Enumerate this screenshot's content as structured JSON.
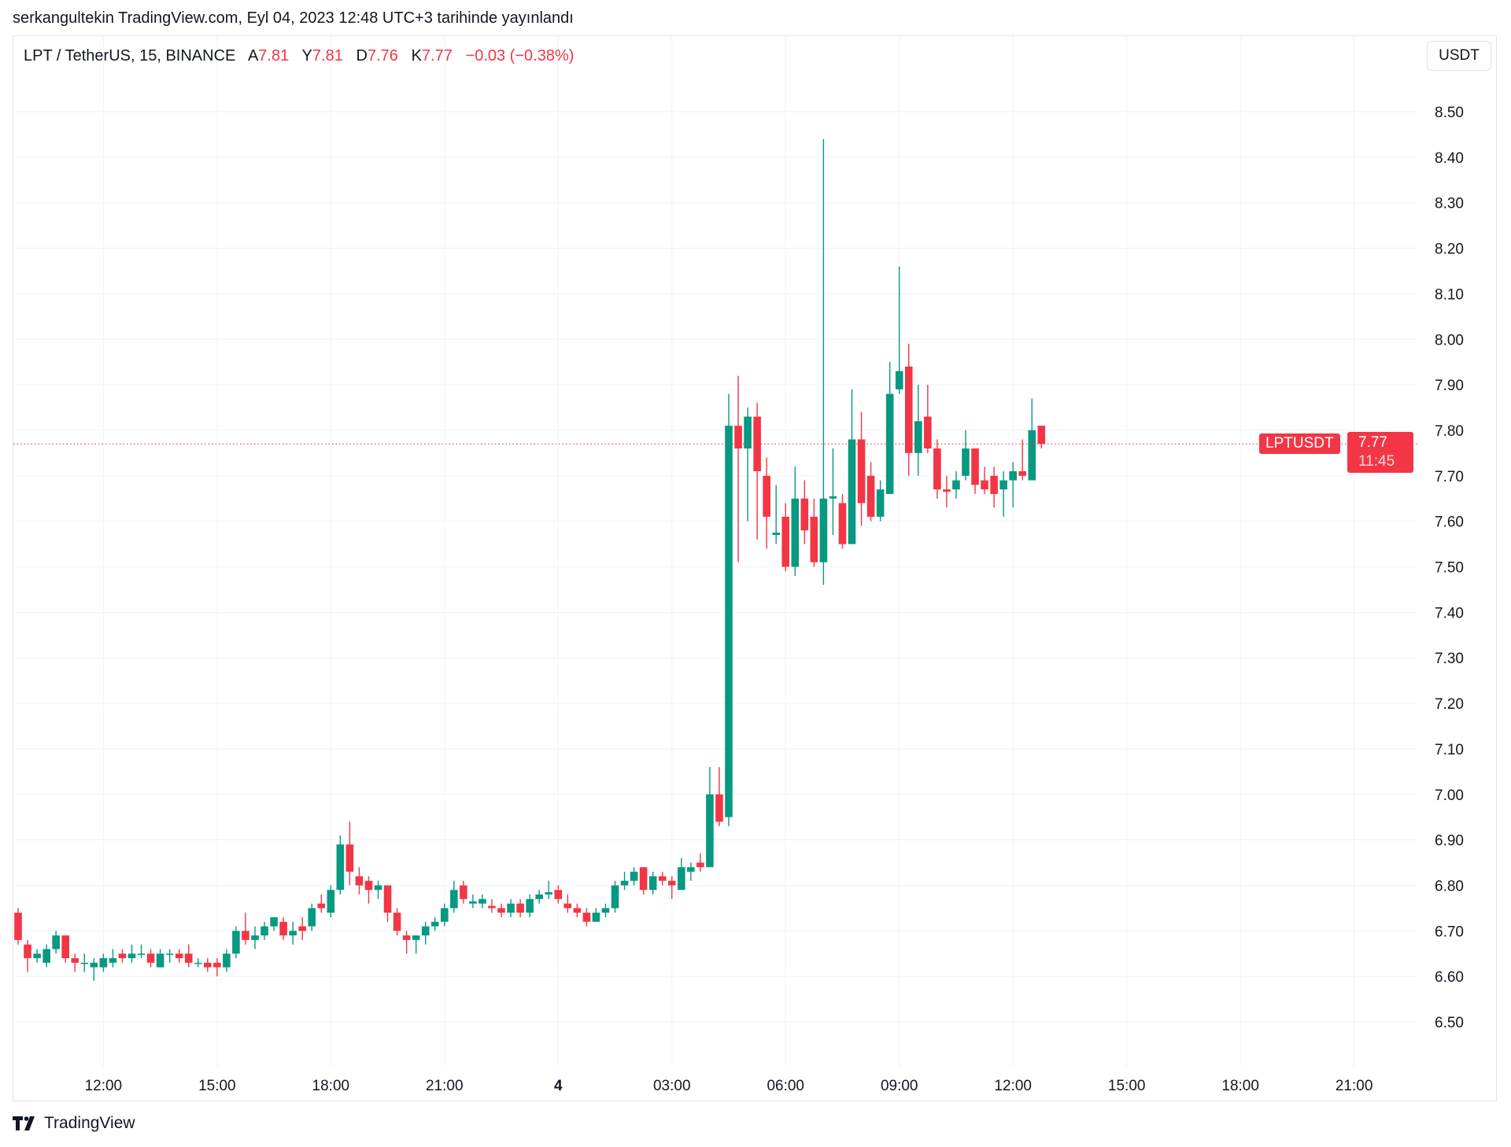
{
  "published": "serkangultekin TradingView.com, Eyl 04, 2023 12:48 UTC+3 tarihinde yayınlandı",
  "legend": {
    "symbol": "LPT / TetherUS, 15, BINANCE",
    "open_label": "A",
    "open": "7.81",
    "high_label": "Y",
    "high": "7.81",
    "low_label": "D",
    "low": "7.76",
    "close_label": "K",
    "close": "7.77",
    "change": "−0.03 (−0.38%)"
  },
  "currency": "USDT",
  "last_price": {
    "symbol": "LPTUSDT",
    "price": "7.77",
    "countdown": "11:45",
    "value": 7.77
  },
  "footer": {
    "brand": "TradingView"
  },
  "colors": {
    "up": "#089981",
    "down": "#f23645",
    "grid": "#f0f3fa"
  },
  "chart_data": {
    "type": "candlestick",
    "title": "LPT / TetherUS, 15, BINANCE",
    "interval_minutes": 15,
    "first_candle_time": "09:45",
    "ylim": [
      6.4,
      8.58
    ],
    "y_ticks": [
      "8.50",
      "8.40",
      "8.30",
      "8.20",
      "8.10",
      "8.00",
      "7.90",
      "7.80",
      "7.70",
      "7.60",
      "7.50",
      "7.40",
      "7.30",
      "7.20",
      "7.10",
      "7.00",
      "6.90",
      "6.80",
      "6.70",
      "6.60",
      "6.50"
    ],
    "x_ticks": [
      {
        "label": "12:00",
        "index": 9
      },
      {
        "label": "15:00",
        "index": 21
      },
      {
        "label": "18:00",
        "index": 33
      },
      {
        "label": "21:00",
        "index": 45
      },
      {
        "label": "4",
        "index": 57,
        "bold": true
      },
      {
        "label": "03:00",
        "index": 69
      },
      {
        "label": "06:00",
        "index": 81
      },
      {
        "label": "09:00",
        "index": 93
      },
      {
        "label": "12:00",
        "index": 105
      },
      {
        "label": "15:00",
        "index": 117
      },
      {
        "label": "18:00",
        "index": 129
      },
      {
        "label": "21:00",
        "index": 141
      }
    ],
    "ohlc": [
      [
        6.74,
        6.75,
        6.67,
        6.68
      ],
      [
        6.67,
        6.68,
        6.61,
        6.64
      ],
      [
        6.64,
        6.66,
        6.63,
        6.65
      ],
      [
        6.63,
        6.67,
        6.62,
        6.66
      ],
      [
        6.66,
        6.7,
        6.65,
        6.69
      ],
      [
        6.69,
        6.69,
        6.63,
        6.64
      ],
      [
        6.64,
        6.65,
        6.61,
        6.63
      ],
      [
        6.63,
        6.65,
        6.61,
        6.63
      ],
      [
        6.62,
        6.64,
        6.59,
        6.63
      ],
      [
        6.62,
        6.65,
        6.61,
        6.64
      ],
      [
        6.63,
        6.66,
        6.62,
        6.64
      ],
      [
        6.65,
        6.66,
        6.63,
        6.64
      ],
      [
        6.64,
        6.67,
        6.63,
        6.65
      ],
      [
        6.65,
        6.67,
        6.64,
        6.65
      ],
      [
        6.65,
        6.66,
        6.62,
        6.63
      ],
      [
        6.62,
        6.66,
        6.62,
        6.65
      ],
      [
        6.65,
        6.66,
        6.63,
        6.65
      ],
      [
        6.65,
        6.66,
        6.63,
        6.64
      ],
      [
        6.65,
        6.67,
        6.62,
        6.63
      ],
      [
        6.63,
        6.64,
        6.62,
        6.63
      ],
      [
        6.63,
        6.64,
        6.61,
        6.62
      ],
      [
        6.63,
        6.64,
        6.6,
        6.62
      ],
      [
        6.62,
        6.66,
        6.61,
        6.65
      ],
      [
        6.65,
        6.71,
        6.64,
        6.7
      ],
      [
        6.7,
        6.74,
        6.67,
        6.68
      ],
      [
        6.68,
        6.71,
        6.66,
        6.69
      ],
      [
        6.69,
        6.72,
        6.68,
        6.71
      ],
      [
        6.71,
        6.73,
        6.7,
        6.73
      ],
      [
        6.72,
        6.73,
        6.68,
        6.69
      ],
      [
        6.69,
        6.72,
        6.67,
        6.7
      ],
      [
        6.71,
        6.73,
        6.68,
        6.7
      ],
      [
        6.71,
        6.76,
        6.7,
        6.75
      ],
      [
        6.76,
        6.78,
        6.74,
        6.75
      ],
      [
        6.74,
        6.8,
        6.73,
        6.79
      ],
      [
        6.79,
        6.91,
        6.78,
        6.89
      ],
      [
        6.89,
        6.94,
        6.8,
        6.83
      ],
      [
        6.82,
        6.84,
        6.78,
        6.8
      ],
      [
        6.81,
        6.82,
        6.76,
        6.79
      ],
      [
        6.79,
        6.81,
        6.77,
        6.8
      ],
      [
        6.8,
        6.8,
        6.72,
        6.74
      ],
      [
        6.74,
        6.75,
        6.69,
        6.7
      ],
      [
        6.69,
        6.7,
        6.65,
        6.68
      ],
      [
        6.68,
        6.69,
        6.65,
        6.69
      ],
      [
        6.69,
        6.72,
        6.67,
        6.71
      ],
      [
        6.71,
        6.73,
        6.7,
        6.72
      ],
      [
        6.72,
        6.76,
        6.71,
        6.75
      ],
      [
        6.75,
        6.81,
        6.74,
        6.79
      ],
      [
        6.8,
        6.81,
        6.76,
        6.77
      ],
      [
        6.76,
        6.78,
        6.75,
        6.765
      ],
      [
        6.76,
        6.78,
        6.75,
        6.77
      ],
      [
        6.755,
        6.77,
        6.74,
        6.75
      ],
      [
        6.75,
        6.76,
        6.73,
        6.74
      ],
      [
        6.74,
        6.77,
        6.73,
        6.76
      ],
      [
        6.76,
        6.77,
        6.73,
        6.74
      ],
      [
        6.74,
        6.78,
        6.73,
        6.77
      ],
      [
        6.77,
        6.79,
        6.76,
        6.78
      ],
      [
        6.78,
        6.81,
        6.77,
        6.785
      ],
      [
        6.79,
        6.8,
        6.76,
        6.77
      ],
      [
        6.76,
        6.78,
        6.74,
        6.75
      ],
      [
        6.75,
        6.76,
        6.73,
        6.74
      ],
      [
        6.74,
        6.75,
        6.71,
        6.72
      ],
      [
        6.72,
        6.75,
        6.72,
        6.74
      ],
      [
        6.74,
        6.76,
        6.73,
        6.75
      ],
      [
        6.75,
        6.81,
        6.74,
        6.8
      ],
      [
        6.8,
        6.83,
        6.79,
        6.81
      ],
      [
        6.81,
        6.84,
        6.8,
        6.83
      ],
      [
        6.84,
        6.84,
        6.78,
        6.79
      ],
      [
        6.79,
        6.83,
        6.78,
        6.82
      ],
      [
        6.82,
        6.83,
        6.8,
        6.81
      ],
      [
        6.81,
        6.82,
        6.77,
        6.8
      ],
      [
        6.79,
        6.86,
        6.79,
        6.84
      ],
      [
        6.83,
        6.85,
        6.81,
        6.84
      ],
      [
        6.85,
        6.87,
        6.83,
        6.84
      ],
      [
        6.84,
        7.06,
        6.84,
        7.0
      ],
      [
        7.0,
        7.06,
        6.93,
        6.94
      ],
      [
        6.95,
        7.88,
        6.93,
        7.81
      ],
      [
        7.81,
        7.92,
        7.51,
        7.76
      ],
      [
        7.76,
        7.85,
        7.6,
        7.83
      ],
      [
        7.83,
        7.86,
        7.56,
        7.71
      ],
      [
        7.7,
        7.74,
        7.54,
        7.61
      ],
      [
        7.57,
        7.68,
        7.55,
        7.575
      ],
      [
        7.61,
        7.64,
        7.49,
        7.5
      ],
      [
        7.5,
        7.72,
        7.48,
        7.65
      ],
      [
        7.65,
        7.69,
        7.55,
        7.58
      ],
      [
        7.61,
        7.65,
        7.5,
        7.51
      ],
      [
        7.51,
        8.44,
        7.46,
        7.65
      ],
      [
        7.65,
        7.76,
        7.57,
        7.655
      ],
      [
        7.64,
        7.66,
        7.54,
        7.55
      ],
      [
        7.55,
        7.89,
        7.55,
        7.78
      ],
      [
        7.78,
        7.84,
        7.59,
        7.64
      ],
      [
        7.7,
        7.73,
        7.6,
        7.61
      ],
      [
        7.61,
        7.69,
        7.6,
        7.67
      ],
      [
        7.66,
        7.95,
        7.66,
        7.88
      ],
      [
        7.89,
        8.16,
        7.88,
        7.93
      ],
      [
        7.94,
        7.99,
        7.7,
        7.75
      ],
      [
        7.75,
        7.9,
        7.7,
        7.82
      ],
      [
        7.83,
        7.9,
        7.75,
        7.76
      ],
      [
        7.76,
        7.78,
        7.65,
        7.67
      ],
      [
        7.67,
        7.7,
        7.63,
        7.665
      ],
      [
        7.67,
        7.71,
        7.65,
        7.69
      ],
      [
        7.7,
        7.8,
        7.69,
        7.76
      ],
      [
        7.76,
        7.76,
        7.66,
        7.68
      ],
      [
        7.69,
        7.72,
        7.66,
        7.67
      ],
      [
        7.7,
        7.72,
        7.63,
        7.66
      ],
      [
        7.67,
        7.71,
        7.61,
        7.69
      ],
      [
        7.69,
        7.73,
        7.63,
        7.71
      ],
      [
        7.71,
        7.78,
        7.69,
        7.7
      ],
      [
        7.69,
        7.87,
        7.69,
        7.8
      ],
      [
        7.81,
        7.81,
        7.76,
        7.77
      ]
    ]
  }
}
